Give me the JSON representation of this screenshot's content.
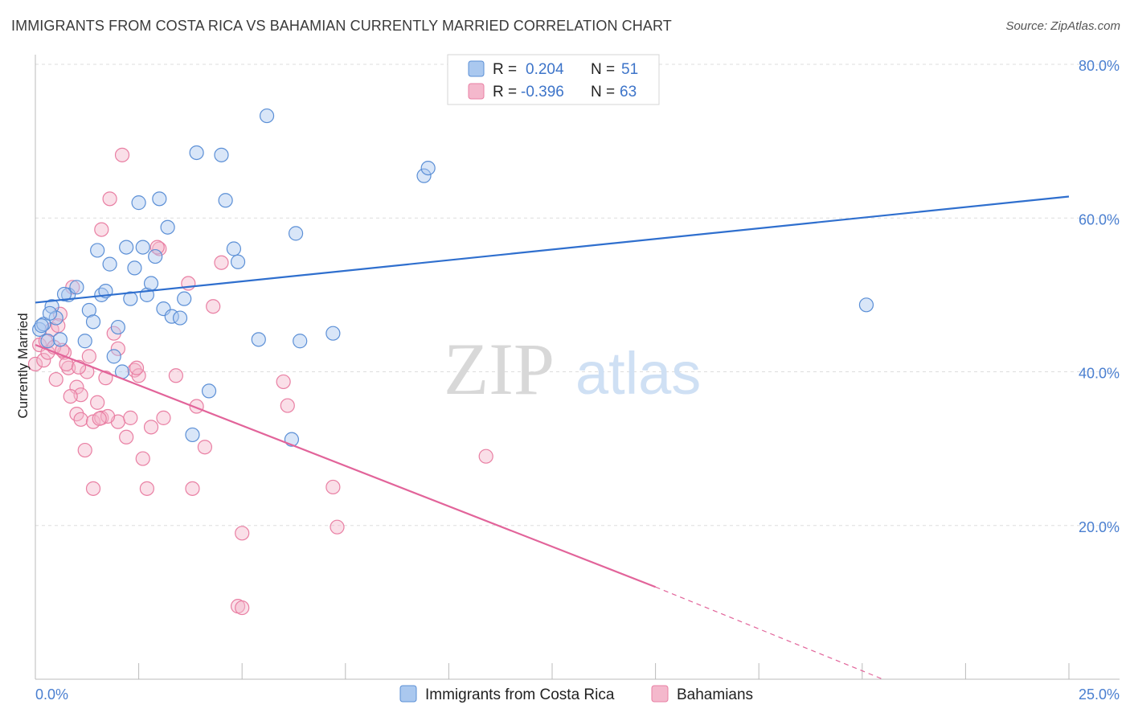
{
  "title": "IMMIGRANTS FROM COSTA RICA VS BAHAMIAN CURRENTLY MARRIED CORRELATION CHART",
  "source": "Source: ZipAtlas.com",
  "watermark": {
    "zip": "ZIP",
    "atlas": "atlas"
  },
  "colors": {
    "blue_fill": "#aac8ef",
    "blue_stroke": "#5b8fd6",
    "blue_line": "#2f6fce",
    "pink_fill": "#f4b8cc",
    "pink_stroke": "#e97fa3",
    "pink_line": "#e2649a",
    "grid": "#dddddd",
    "tick_text": "#4a7fd0"
  },
  "legend": {
    "rows": [
      {
        "r_label": "R =",
        "r_value": "0.204",
        "n_label": "N =",
        "n_value": "51",
        "color": "blue"
      },
      {
        "r_label": "R =",
        "r_value": "-0.396",
        "n_label": "N =",
        "n_value": "63",
        "color": "pink"
      }
    ]
  },
  "chart_data": {
    "type": "scatter",
    "title": "IMMIGRANTS FROM COSTA RICA VS BAHAMIAN CURRENTLY MARRIED CORRELATION CHART",
    "xlabel": "",
    "ylabel": "Currently Married",
    "xlim": [
      0,
      25
    ],
    "ylim": [
      0,
      80
    ],
    "x_tick_labels": [
      "0.0%",
      "25.0%"
    ],
    "y_tick_labels": [
      "20.0%",
      "40.0%",
      "60.0%",
      "80.0%"
    ],
    "y_ticks": [
      20,
      40,
      60,
      80
    ],
    "grid": true,
    "legend_position": "top-center",
    "series": [
      {
        "name": "Immigrants from Costa Rica",
        "color": "blue",
        "trend": {
          "x0": 0,
          "y0": 49.0,
          "x1": 25,
          "y1": 62.8,
          "dashed_from": null
        },
        "points": [
          [
            0.1,
            45.5
          ],
          [
            0.2,
            46.2
          ],
          [
            0.3,
            44.0
          ],
          [
            0.4,
            48.5
          ],
          [
            0.5,
            47.0
          ],
          [
            0.6,
            44.2
          ],
          [
            0.8,
            50.0
          ],
          [
            1.0,
            51.0
          ],
          [
            1.2,
            44.0
          ],
          [
            1.3,
            48.0
          ],
          [
            1.4,
            46.5
          ],
          [
            1.5,
            55.8
          ],
          [
            1.6,
            50.0
          ],
          [
            1.7,
            50.5
          ],
          [
            1.8,
            54.0
          ],
          [
            1.9,
            42.0
          ],
          [
            2.0,
            45.8
          ],
          [
            2.1,
            40.0
          ],
          [
            2.2,
            56.2
          ],
          [
            2.3,
            49.5
          ],
          [
            2.4,
            53.5
          ],
          [
            2.5,
            62.0
          ],
          [
            2.6,
            56.2
          ],
          [
            2.7,
            50.0
          ],
          [
            2.8,
            51.5
          ],
          [
            2.9,
            55.0
          ],
          [
            3.0,
            62.5
          ],
          [
            3.1,
            48.2
          ],
          [
            3.2,
            58.8
          ],
          [
            3.3,
            47.2
          ],
          [
            3.5,
            47.0
          ],
          [
            3.6,
            49.5
          ],
          [
            3.8,
            31.8
          ],
          [
            3.9,
            68.5
          ],
          [
            4.2,
            37.5
          ],
          [
            4.5,
            68.2
          ],
          [
            4.6,
            62.3
          ],
          [
            4.8,
            56.0
          ],
          [
            4.9,
            54.3
          ],
          [
            5.4,
            44.2
          ],
          [
            5.6,
            73.3
          ],
          [
            6.2,
            31.2
          ],
          [
            6.3,
            58.0
          ],
          [
            6.4,
            44.0
          ],
          [
            7.2,
            45.0
          ],
          [
            9.4,
            65.5
          ],
          [
            9.5,
            66.5
          ],
          [
            20.1,
            48.7
          ],
          [
            0.15,
            46.0
          ],
          [
            0.7,
            50.1
          ],
          [
            0.35,
            47.6
          ]
        ]
      },
      {
        "name": "Bahamians",
        "color": "pink",
        "trend": {
          "x0": 0,
          "y0": 43.5,
          "x1": 15,
          "y1": 12.0,
          "dashed_to_x": 20.5,
          "dashed_to_y": 0.0
        },
        "points": [
          [
            0.0,
            41.0
          ],
          [
            0.1,
            43.5
          ],
          [
            0.2,
            41.5
          ],
          [
            0.3,
            42.5
          ],
          [
            0.4,
            45.5
          ],
          [
            0.5,
            39.0
          ],
          [
            0.6,
            47.5
          ],
          [
            0.7,
            42.5
          ],
          [
            0.8,
            40.5
          ],
          [
            0.9,
            51.0
          ],
          [
            1.0,
            38.0
          ],
          [
            1.0,
            34.5
          ],
          [
            1.1,
            37.0
          ],
          [
            1.1,
            33.8
          ],
          [
            1.2,
            29.8
          ],
          [
            1.3,
            42.0
          ],
          [
            1.4,
            24.8
          ],
          [
            1.4,
            33.5
          ],
          [
            1.5,
            36.0
          ],
          [
            1.6,
            34.0
          ],
          [
            1.6,
            58.5
          ],
          [
            1.7,
            39.2
          ],
          [
            1.8,
            62.5
          ],
          [
            1.9,
            45.0
          ],
          [
            2.0,
            33.5
          ],
          [
            2.0,
            43.0
          ],
          [
            2.1,
            68.2
          ],
          [
            2.2,
            31.5
          ],
          [
            2.3,
            34.0
          ],
          [
            2.4,
            40.2
          ],
          [
            2.5,
            39.5
          ],
          [
            2.6,
            28.7
          ],
          [
            2.7,
            24.8
          ],
          [
            2.8,
            32.8
          ],
          [
            3.0,
            56.0
          ],
          [
            3.1,
            34.0
          ],
          [
            3.4,
            39.5
          ],
          [
            3.7,
            51.5
          ],
          [
            3.8,
            24.8
          ],
          [
            3.9,
            35.5
          ],
          [
            4.1,
            30.2
          ],
          [
            4.3,
            48.5
          ],
          [
            4.5,
            54.2
          ],
          [
            4.9,
            9.5
          ],
          [
            5.0,
            9.3
          ],
          [
            5.0,
            19.0
          ],
          [
            6.0,
            38.7
          ],
          [
            6.1,
            35.6
          ],
          [
            7.2,
            25.0
          ],
          [
            7.3,
            19.8
          ],
          [
            10.9,
            29.0
          ],
          [
            0.25,
            44.0
          ],
          [
            0.55,
            46.0
          ],
          [
            0.75,
            41.0
          ],
          [
            1.25,
            40.0
          ],
          [
            1.75,
            34.2
          ],
          [
            2.45,
            40.5
          ],
          [
            2.95,
            56.2
          ],
          [
            0.45,
            43.2
          ],
          [
            0.65,
            42.8
          ],
          [
            1.05,
            40.6
          ],
          [
            0.85,
            36.8
          ],
          [
            1.55,
            33.9
          ]
        ]
      }
    ]
  }
}
